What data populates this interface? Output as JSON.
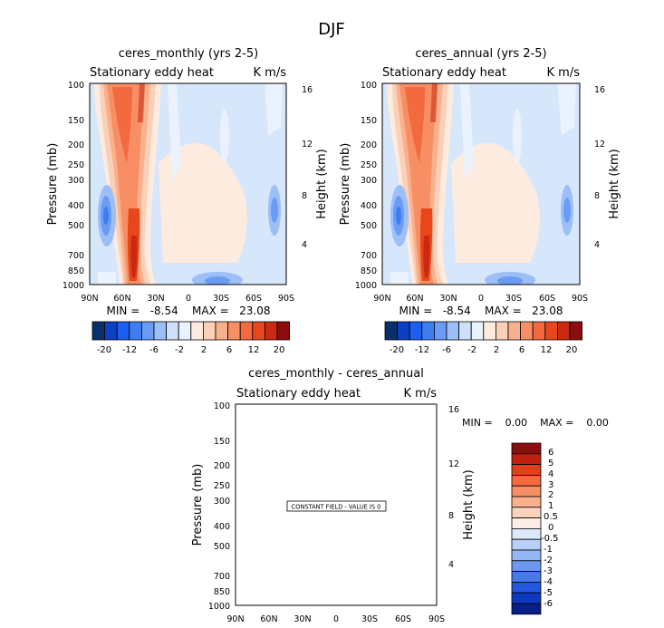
{
  "page_title": "DJF",
  "chart_data": [
    {
      "type": "heatmap",
      "title": "ceres_monthly (yrs 2-5)",
      "subtitle_left": "Stationary eddy heat",
      "subtitle_right": "K m/s",
      "xlabel": "",
      "ylabel": "Pressure (mb)",
      "ylabel_right": "Height (km)",
      "x_ticks": [
        "90N",
        "60N",
        "30N",
        "0",
        "30S",
        "60S",
        "90S"
      ],
      "y_ticks": [
        "100",
        "150",
        "200",
        "250",
        "300",
        "400",
        "500",
        "700",
        "850",
        "1000"
      ],
      "y_right_ticks": [
        "16",
        "12",
        "8",
        "4"
      ],
      "min_max_text": "MIN =   -8.54    MAX =   23.08",
      "colorbar_ticks": [
        "-20",
        "-12",
        "-6",
        "-2",
        "2",
        "6",
        "12",
        "20"
      ]
    },
    {
      "type": "heatmap",
      "title": "ceres_annual (yrs 2-5)",
      "subtitle_left": "Stationary eddy heat",
      "subtitle_right": "K m/s",
      "xlabel": "",
      "ylabel": "Pressure (mb)",
      "ylabel_right": "Height (km)",
      "x_ticks": [
        "90N",
        "60N",
        "30N",
        "0",
        "30S",
        "60S",
        "90S"
      ],
      "y_ticks": [
        "100",
        "150",
        "200",
        "250",
        "300",
        "400",
        "500",
        "700",
        "850",
        "1000"
      ],
      "y_right_ticks": [
        "16",
        "12",
        "8",
        "4"
      ],
      "min_max_text": "MIN =   -8.54    MAX =   23.08",
      "colorbar_ticks": [
        "-20",
        "-12",
        "-6",
        "-2",
        "2",
        "6",
        "12",
        "20"
      ]
    },
    {
      "type": "heatmap",
      "title": "ceres_monthly - ceres_annual",
      "subtitle_left": "Stationary eddy heat",
      "subtitle_right": "K m/s",
      "xlabel": "",
      "ylabel": "Pressure (mb)",
      "ylabel_right": "Height (km)",
      "x_ticks": [
        "90N",
        "60N",
        "30N",
        "0",
        "30S",
        "60S",
        "90S"
      ],
      "y_ticks": [
        "100",
        "150",
        "200",
        "250",
        "300",
        "400",
        "500",
        "700",
        "850",
        "1000"
      ],
      "y_right_ticks": [
        "16",
        "12",
        "8",
        "4"
      ],
      "min_max_text": "MIN =    0.00    MAX =    0.00",
      "annotation": "CONSTANT FIELD - VALUE IS 0",
      "colorbar_ticks": [
        "6",
        "5",
        "4",
        "3",
        "2",
        "1",
        "0.5",
        "0",
        "-0.5",
        "-1",
        "-2",
        "-3",
        "-4",
        "-5",
        "-6"
      ]
    }
  ],
  "colors": {
    "top_colorbar": [
      "#08306b",
      "#0b3fc4",
      "#1a5ff0",
      "#3d7df2",
      "#6a9cf5",
      "#9dbff8",
      "#cfe0fb",
      "#eaf2fd",
      "#fdebdf",
      "#fbd0b8",
      "#f9b08c",
      "#f78e64",
      "#f36a3e",
      "#e8471e",
      "#c92a10",
      "#8c0d0d"
    ],
    "bottom_colorbar": [
      "#8c0d0d",
      "#c0200f",
      "#e0401a",
      "#f46a3e",
      "#f78e64",
      "#f9b08c",
      "#fbd3bd",
      "#fdeee5",
      "#dbe8fb",
      "#b8d0f8",
      "#93b6f5",
      "#6c98f1",
      "#4679ea",
      "#2257df",
      "#0d3ac0",
      "#071f86"
    ]
  }
}
